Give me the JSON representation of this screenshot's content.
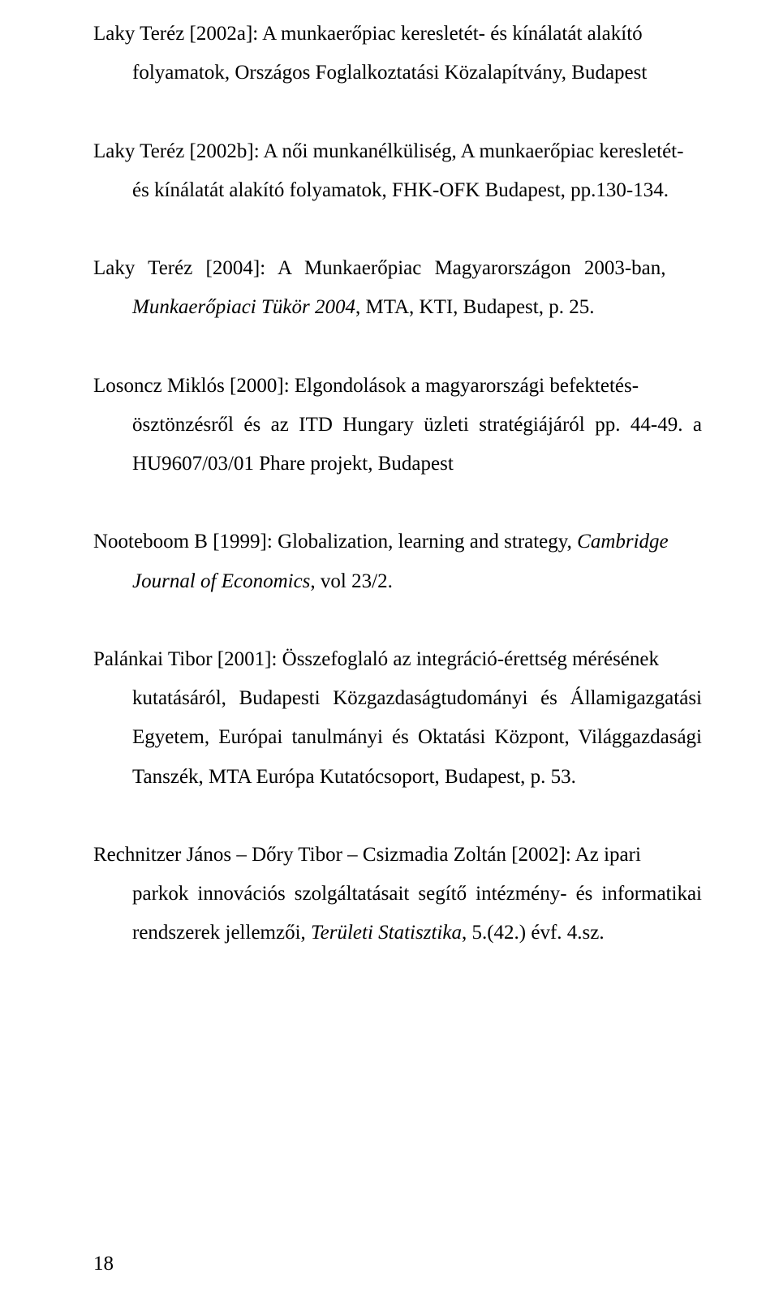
{
  "entries": [
    {
      "line1": "Laky Teréz [2002a]: A munkaerőpiac keresletét- és kínálatát alakító",
      "cont": "folyamatok, Országos Foglalkoztatási Közalapítvány, Budapest"
    },
    {
      "line1": "Laky Teréz [2002b]: A női munkanélküliség, A munkaerőpiac keresletét-",
      "cont": "és kínálatát alakító folyamatok, FHK-OFK Budapest, pp.130-134."
    },
    {
      "line1_a": "Laky Teréz [2004]: A Munkaerőpiac Magyarországon 2003-ban,",
      "cont_italic": "Munkaerőpiaci Tükör 2004",
      "cont_after": ", MTA, KTI, Budapest, p. 25."
    },
    {
      "line1": "Losoncz Miklós [2000]: Elgondolások a magyarországi befektetés-",
      "cont": "ösztönzésről és az ITD Hungary üzleti stratégiájáról pp. 44-49. a HU9607/03/01 Phare projekt, Budapest"
    },
    {
      "line1_a": "Nooteboom B [1999]: Globalization, learning and strategy, ",
      "line1_italic": "Cambridge",
      "cont_italic": "Journal of Economics",
      "cont_after": ", vol 23/2."
    },
    {
      "line1": "Palánkai Tibor [2001]: Összefoglaló az integráció-érettség mérésének",
      "cont": "kutatásáról, Budapesti Közgazdaságtudományi és Államigazgatási Egyetem, Európai tanulmányi és Oktatási Központ, Világgazdasági Tanszék, MTA Európa Kutatócsoport, Budapest, p. 53."
    },
    {
      "line1": "Rechnitzer János – Dőry Tibor – Csizmadia Zoltán [2002]: Az ipari",
      "cont_a": "parkok innovációs szolgáltatásait segítő intézmény- és informatikai rendszerek jellemzői, ",
      "cont_italic": "Területi Statisztika",
      "cont_after": ", 5.(42.) évf. 4.sz."
    }
  ],
  "page_number": "18"
}
